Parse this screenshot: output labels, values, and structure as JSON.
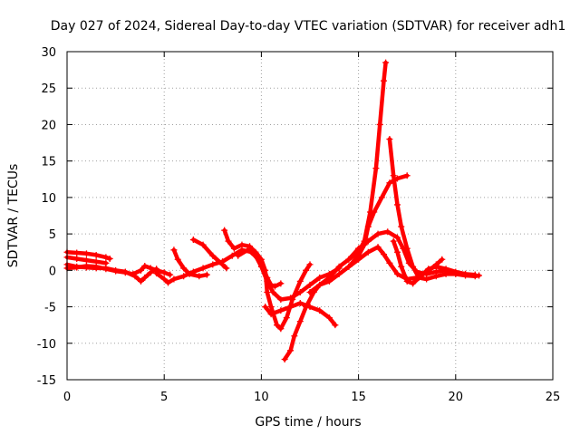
{
  "chart_data": {
    "type": "scatter",
    "title": "Day 027 of 2024, Sidereal Day-to-day VTEC variation (SDTVAR) for receiver adh1",
    "xlabel": "GPS time / hours",
    "ylabel": "SDTVAR / TECUs",
    "xlim": [
      0,
      25
    ],
    "ylim": [
      -15,
      30
    ],
    "x_ticks": [
      "0",
      "5",
      "10",
      "15",
      "20",
      "25"
    ],
    "y_ticks": [
      "-15",
      "-10",
      "-5",
      "0",
      "5",
      "10",
      "15",
      "20",
      "25",
      "30"
    ],
    "grid": true,
    "marker": "plus",
    "color": "#ff0000",
    "series": [
      {
        "points": [
          [
            0,
            2.5
          ],
          [
            0.5,
            2.4
          ],
          [
            1,
            2.3
          ],
          [
            1.5,
            2.1
          ],
          [
            2,
            1.8
          ],
          [
            2.2,
            1.6
          ]
        ]
      },
      {
        "points": [
          [
            0,
            1.8
          ],
          [
            0.5,
            1.6
          ],
          [
            1,
            1.4
          ],
          [
            1.5,
            1.2
          ],
          [
            2,
            1.0
          ]
        ]
      },
      {
        "points": [
          [
            0,
            0.8
          ],
          [
            0.5,
            0.5
          ],
          [
            1,
            0.4
          ],
          [
            1.5,
            0.3
          ],
          [
            2,
            0.3
          ],
          [
            2.5,
            0
          ],
          [
            3,
            -0.2
          ],
          [
            3.5,
            -0.8
          ],
          [
            3.8,
            -1.5
          ],
          [
            4,
            -1.0
          ],
          [
            4.3,
            -0.3
          ],
          [
            4.6,
            0.2
          ]
        ]
      },
      {
        "points": [
          [
            0,
            0.3
          ],
          [
            0.5,
            0.4
          ],
          [
            1,
            0.6
          ],
          [
            1.5,
            0.5
          ],
          [
            2,
            0.2
          ],
          [
            2.5,
            -0.1
          ],
          [
            3,
            -0.3
          ],
          [
            3.4,
            -0.5
          ],
          [
            3.8,
            0
          ],
          [
            4,
            0.6
          ],
          [
            4.3,
            0.3
          ],
          [
            4.6,
            0
          ],
          [
            5,
            -0.3
          ],
          [
            5.3,
            -0.6
          ]
        ]
      },
      {
        "points": [
          [
            4.6,
            -0.4
          ],
          [
            5,
            -1.2
          ],
          [
            5.2,
            -1.7
          ],
          [
            5.5,
            -1.2
          ],
          [
            6,
            -0.8
          ],
          [
            6.5,
            -0.2
          ],
          [
            7,
            0.3
          ],
          [
            7.5,
            0.8
          ],
          [
            8,
            1.2
          ],
          [
            8.5,
            2.0
          ],
          [
            9,
            2.8
          ],
          [
            9.5,
            2.5
          ],
          [
            10,
            1.0
          ],
          [
            10.3,
            -1.0
          ],
          [
            10.5,
            -2.0
          ],
          [
            10.7,
            -2.2
          ],
          [
            11,
            -1.8
          ]
        ]
      },
      {
        "points": [
          [
            5.5,
            2.8
          ],
          [
            5.7,
            1.5
          ],
          [
            6,
            0.3
          ],
          [
            6.3,
            -0.5
          ],
          [
            6.8,
            -0.8
          ],
          [
            7.2,
            -0.6
          ]
        ]
      },
      {
        "points": [
          [
            6.5,
            4.2
          ],
          [
            7,
            3.5
          ],
          [
            7.5,
            2.0
          ],
          [
            8,
            0.8
          ],
          [
            8.2,
            0.3
          ]
        ]
      },
      {
        "points": [
          [
            8.1,
            5.5
          ],
          [
            8.3,
            4.0
          ],
          [
            8.6,
            3.0
          ],
          [
            9,
            3.5
          ],
          [
            9.4,
            3.3
          ],
          [
            9.7,
            2.5
          ],
          [
            10,
            1.5
          ],
          [
            10.2,
            0
          ],
          [
            10.3,
            -3.0
          ],
          [
            10.5,
            -5.0
          ],
          [
            10.8,
            -7.5
          ],
          [
            11,
            -8.0
          ],
          [
            11.3,
            -6.5
          ],
          [
            11.6,
            -4.0
          ],
          [
            12,
            -1.5
          ],
          [
            12.3,
            0
          ],
          [
            12.5,
            0.8
          ]
        ]
      },
      {
        "points": [
          [
            8.8,
            2.0
          ],
          [
            9.3,
            2.8
          ],
          [
            9.7,
            2.0
          ],
          [
            10,
            0.5
          ],
          [
            10.3,
            -1.5
          ],
          [
            10.6,
            -3.0
          ],
          [
            11,
            -4.0
          ],
          [
            11.5,
            -3.8
          ],
          [
            12,
            -3.0
          ],
          [
            12.5,
            -2.0
          ],
          [
            13,
            -1.0
          ],
          [
            13.5,
            -0.5
          ],
          [
            14,
            0.3
          ]
        ]
      },
      {
        "points": [
          [
            10.2,
            -5.0
          ],
          [
            10.5,
            -6.0
          ],
          [
            11,
            -5.5
          ],
          [
            11.5,
            -5.0
          ],
          [
            12,
            -4.5
          ],
          [
            12.5,
            -5.0
          ],
          [
            13,
            -5.5
          ],
          [
            13.5,
            -6.5
          ],
          [
            13.8,
            -7.5
          ]
        ]
      },
      {
        "points": [
          [
            11.2,
            -12.2
          ],
          [
            11.5,
            -11.0
          ],
          [
            11.7,
            -9.0
          ],
          [
            12,
            -7.0
          ],
          [
            12.3,
            -5.0
          ],
          [
            12.7,
            -3.0
          ],
          [
            13,
            -2.0
          ],
          [
            13.5,
            -1.5
          ],
          [
            14,
            -0.5
          ],
          [
            14.5,
            0.5
          ],
          [
            15,
            1.5
          ],
          [
            15.5,
            2.5
          ],
          [
            16,
            3.2
          ],
          [
            16.3,
            2.2
          ],
          [
            16.6,
            1.0
          ],
          [
            17,
            -0.5
          ],
          [
            17.5,
            -1.2
          ],
          [
            18,
            -1.0
          ],
          [
            18.5,
            -0.3
          ],
          [
            19,
            0.8
          ],
          [
            19.3,
            1.5
          ]
        ]
      },
      {
        "points": [
          [
            12.5,
            -3.0
          ],
          [
            13,
            -2.0
          ],
          [
            13.5,
            -1.0
          ],
          [
            14,
            0.5
          ],
          [
            14.5,
            1.5
          ],
          [
            15,
            2.5
          ],
          [
            15.3,
            4.0
          ],
          [
            15.6,
            8.0
          ],
          [
            15.9,
            14.0
          ],
          [
            16.1,
            20.0
          ],
          [
            16.3,
            26.0
          ],
          [
            16.4,
            28.5
          ]
        ]
      },
      {
        "points": [
          [
            16.6,
            18.0
          ],
          [
            16.8,
            13.0
          ],
          [
            17,
            9.0
          ],
          [
            17.2,
            6.0
          ],
          [
            17.5,
            3.0
          ],
          [
            17.8,
            0.5
          ],
          [
            18.1,
            -1.0
          ],
          [
            18.5,
            -1.2
          ],
          [
            19,
            -0.8
          ],
          [
            19.5,
            -0.5
          ],
          [
            20,
            -0.5
          ],
          [
            20.5,
            -0.7
          ],
          [
            21,
            -0.8
          ],
          [
            21.2,
            -0.7
          ]
        ]
      },
      {
        "points": [
          [
            14.5,
            0.5
          ],
          [
            15,
            2.0
          ],
          [
            15.3,
            3.5
          ],
          [
            15.5,
            6.0
          ],
          [
            15.8,
            8.0
          ],
          [
            16.2,
            10.0
          ],
          [
            16.6,
            12.0
          ],
          [
            17,
            12.6
          ],
          [
            17.5,
            13.0
          ]
        ]
      },
      {
        "points": [
          [
            14.5,
            1.5
          ],
          [
            15,
            3.0
          ],
          [
            15.5,
            4.0
          ],
          [
            16,
            5.0
          ],
          [
            16.5,
            5.3
          ],
          [
            17,
            4.5
          ],
          [
            17.3,
            3.0
          ],
          [
            17.6,
            1.0
          ],
          [
            18,
            -0.2
          ],
          [
            18.5,
            -0.5
          ],
          [
            19,
            -0.2
          ],
          [
            19.5,
            0
          ],
          [
            20,
            -0.3
          ],
          [
            20.5,
            -0.5
          ],
          [
            21,
            -0.6
          ]
        ]
      },
      {
        "points": [
          [
            16.8,
            4.0
          ],
          [
            17,
            2.5
          ],
          [
            17.2,
            0.5
          ],
          [
            17.5,
            -1.5
          ],
          [
            17.8,
            -1.8
          ],
          [
            18.2,
            -0.8
          ],
          [
            18.6,
            0.2
          ],
          [
            19,
            0.5
          ],
          [
            19.5,
            0.2
          ],
          [
            20,
            -0.2
          ],
          [
            20.5,
            -0.5
          ]
        ]
      }
    ]
  }
}
